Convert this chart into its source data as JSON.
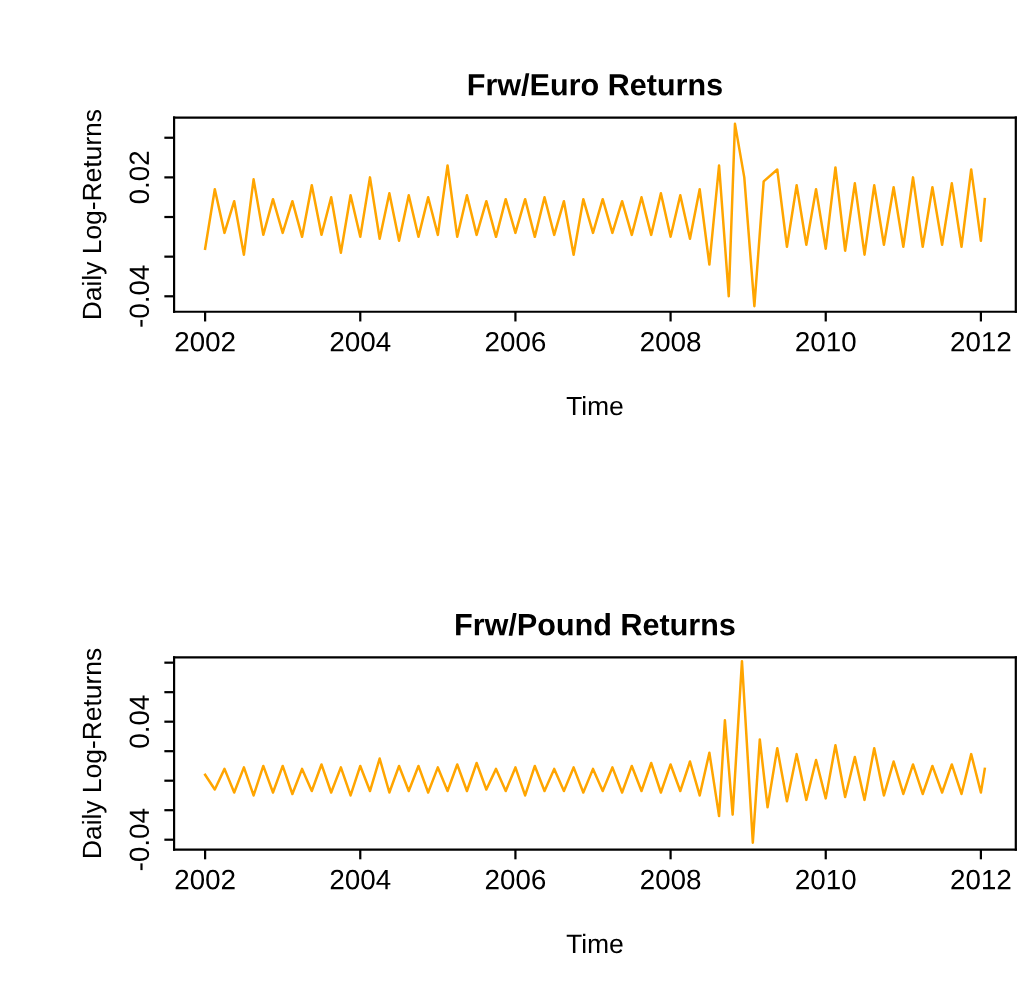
{
  "chart_data": [
    {
      "type": "line",
      "title": "Frw/Euro Returns",
      "xlabel": "Time",
      "ylabel": "Daily Log-Returns",
      "series": [
        {
          "color": "#ffa500",
          "x": [
            2002.0,
            2002.125,
            2002.25,
            2002.375,
            2002.5,
            2002.625,
            2002.75,
            2002.875,
            2003.0,
            2003.125,
            2003.25,
            2003.375,
            2003.5,
            2003.625,
            2003.75,
            2003.875,
            2004.0,
            2004.125,
            2004.25,
            2004.375,
            2004.5,
            2004.625,
            2004.75,
            2004.875,
            2005.0,
            2005.125,
            2005.25,
            2005.375,
            2005.5,
            2005.625,
            2005.75,
            2005.875,
            2006.0,
            2006.125,
            2006.25,
            2006.375,
            2006.5,
            2006.625,
            2006.75,
            2006.875,
            2007.0,
            2007.125,
            2007.25,
            2007.375,
            2007.5,
            2007.625,
            2007.75,
            2007.875,
            2008.0,
            2008.125,
            2008.25,
            2008.375,
            2008.5,
            2008.625,
            2008.75,
            2008.83,
            2008.95,
            2009.08,
            2009.2,
            2009.375,
            2009.5,
            2009.625,
            2009.75,
            2009.875,
            2010.0,
            2010.125,
            2010.25,
            2010.375,
            2010.5,
            2010.625,
            2010.75,
            2010.875,
            2011.0,
            2011.125,
            2011.25,
            2011.375,
            2011.5,
            2011.625,
            2011.75,
            2011.875,
            2012.0,
            2012.05
          ],
          "values": [
            -0.016,
            0.014,
            -0.008,
            0.008,
            -0.019,
            0.019,
            -0.009,
            0.009,
            -0.008,
            0.008,
            -0.01,
            0.016,
            -0.009,
            0.01,
            -0.018,
            0.011,
            -0.01,
            0.02,
            -0.011,
            0.012,
            -0.012,
            0.011,
            -0.01,
            0.01,
            -0.009,
            0.026,
            -0.01,
            0.011,
            -0.009,
            0.008,
            -0.01,
            0.009,
            -0.008,
            0.009,
            -0.01,
            0.01,
            -0.009,
            0.008,
            -0.019,
            0.009,
            -0.008,
            0.009,
            -0.008,
            0.008,
            -0.009,
            0.01,
            -0.009,
            0.012,
            -0.01,
            0.011,
            -0.011,
            0.014,
            -0.024,
            0.026,
            -0.04,
            0.047,
            0.02,
            -0.045,
            0.018,
            0.024,
            -0.015,
            0.016,
            -0.014,
            0.014,
            -0.016,
            0.025,
            -0.017,
            0.017,
            -0.019,
            0.016,
            -0.014,
            0.015,
            -0.015,
            0.02,
            -0.015,
            0.015,
            -0.014,
            0.017,
            -0.015,
            0.024,
            -0.012,
            0.009
          ]
        }
      ],
      "xlim": [
        2001.6,
        2012.45
      ],
      "xticks": [
        2002,
        2004,
        2006,
        2008,
        2010,
        2012
      ],
      "ylim": [
        -0.0478,
        0.0502
      ],
      "yticks": [
        -0.04,
        {
          "value": -0.02,
          "label": null
        },
        {
          "value": 0,
          "label": null
        },
        0.02,
        {
          "value": 0.04,
          "label": null
        }
      ],
      "grid": false,
      "legend": false
    },
    {
      "type": "line",
      "title": "Frw/Pound Returns",
      "xlabel": "Time",
      "ylabel": "Daily Log-Returns",
      "series": [
        {
          "color": "#ffa500",
          "x": [
            2002.0,
            2002.125,
            2002.25,
            2002.375,
            2002.5,
            2002.625,
            2002.75,
            2002.875,
            2003.0,
            2003.125,
            2003.25,
            2003.375,
            2003.5,
            2003.625,
            2003.75,
            2003.875,
            2004.0,
            2004.125,
            2004.25,
            2004.375,
            2004.5,
            2004.625,
            2004.75,
            2004.875,
            2005.0,
            2005.125,
            2005.25,
            2005.375,
            2005.5,
            2005.625,
            2005.75,
            2005.875,
            2006.0,
            2006.125,
            2006.25,
            2006.375,
            2006.5,
            2006.625,
            2006.75,
            2006.875,
            2007.0,
            2007.125,
            2007.25,
            2007.375,
            2007.5,
            2007.625,
            2007.75,
            2007.875,
            2008.0,
            2008.125,
            2008.25,
            2008.375,
            2008.5,
            2008.625,
            2008.7,
            2008.8,
            2008.92,
            2009.06,
            2009.15,
            2009.25,
            2009.375,
            2009.5,
            2009.625,
            2009.75,
            2009.875,
            2010.0,
            2010.125,
            2010.25,
            2010.375,
            2010.5,
            2010.625,
            2010.75,
            2010.875,
            2011.0,
            2011.125,
            2011.25,
            2011.375,
            2011.5,
            2011.625,
            2011.75,
            2011.875,
            2012.0,
            2012.05
          ],
          "values": [
            0.004,
            -0.006,
            0.008,
            -0.008,
            0.009,
            -0.01,
            0.01,
            -0.008,
            0.01,
            -0.009,
            0.008,
            -0.007,
            0.011,
            -0.008,
            0.009,
            -0.01,
            0.01,
            -0.007,
            0.015,
            -0.008,
            0.01,
            -0.007,
            0.01,
            -0.008,
            0.009,
            -0.007,
            0.011,
            -0.007,
            0.012,
            -0.006,
            0.008,
            -0.007,
            0.009,
            -0.01,
            0.01,
            -0.007,
            0.008,
            -0.007,
            0.009,
            -0.008,
            0.008,
            -0.007,
            0.009,
            -0.008,
            0.01,
            -0.007,
            0.012,
            -0.008,
            0.011,
            -0.007,
            0.013,
            -0.01,
            0.019,
            -0.024,
            0.041,
            -0.023,
            0.081,
            -0.042,
            0.028,
            -0.018,
            0.022,
            -0.014,
            0.018,
            -0.013,
            0.014,
            -0.012,
            0.024,
            -0.011,
            0.016,
            -0.013,
            0.022,
            -0.01,
            0.013,
            -0.009,
            0.011,
            -0.009,
            0.01,
            -0.008,
            0.011,
            -0.009,
            0.018,
            -0.008,
            0.008
          ]
        }
      ],
      "xlim": [
        2001.6,
        2012.45
      ],
      "xticks": [
        2002,
        2004,
        2006,
        2008,
        2010,
        2012
      ],
      "ylim": [
        -0.0467,
        0.0836
      ],
      "yticks": [
        -0.04,
        {
          "value": -0.02,
          "label": null
        },
        {
          "value": 0,
          "label": null
        },
        {
          "value": 0.02,
          "label": null
        },
        0.04,
        {
          "value": 0.06,
          "label": null
        },
        {
          "value": 0.08,
          "label": null
        }
      ],
      "grid": false,
      "legend": false
    }
  ]
}
